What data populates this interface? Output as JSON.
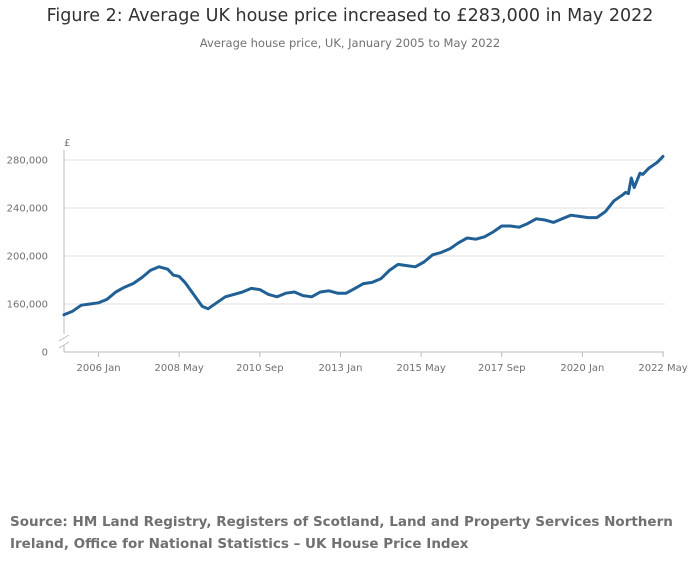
{
  "title": "Figure 2: Average UK house price increased to £283,000 in May 2022",
  "subtitle": "Average house price, UK, January 2005 to May 2022",
  "source": "Source: HM Land Registry, Registers of Scotland, Land and Property Services Northern Ireland, Office for National Statistics – UK House Price Index",
  "colors": {
    "line": "#206095",
    "grid": "#dddddd",
    "axis": "#bbbbbb",
    "text": "#707071"
  },
  "chart_data": {
    "type": "line",
    "title": "Figure 2: Average UK house price increased to £283,000 in May 2022",
    "subtitle": "Average house price, UK, January 2005 to May 2022",
    "xlabel": "",
    "ylabel": "£",
    "y_ticks": [
      0,
      160000,
      200000,
      240000,
      280000
    ],
    "y_tick_labels": [
      "0",
      "160,000",
      "200,000",
      "240,000",
      "280,000"
    ],
    "ylim": [
      0,
      290000
    ],
    "y_axis_break": true,
    "x_range": [
      "2005-01",
      "2022-05"
    ],
    "x_ticks": [
      "2006-01",
      "2008-05",
      "2010-09",
      "2013-01",
      "2015-05",
      "2017-09",
      "2020-01",
      "2022-05"
    ],
    "x_tick_labels": [
      "2006 Jan",
      "2008 May",
      "2010 Sep",
      "2013 Jan",
      "2015 May",
      "2017 Sep",
      "2020 Jan",
      "2022 May"
    ],
    "grid": true,
    "series": [
      {
        "name": "Average house price",
        "points": [
          [
            "2005-01",
            151000
          ],
          [
            "2005-04",
            154000
          ],
          [
            "2005-07",
            159000
          ],
          [
            "2005-10",
            160000
          ],
          [
            "2006-01",
            161000
          ],
          [
            "2006-04",
            164000
          ],
          [
            "2006-07",
            170000
          ],
          [
            "2006-10",
            174000
          ],
          [
            "2007-01",
            177000
          ],
          [
            "2007-04",
            182000
          ],
          [
            "2007-07",
            188000
          ],
          [
            "2007-10",
            191000
          ],
          [
            "2008-01",
            189000
          ],
          [
            "2008-03",
            184000
          ],
          [
            "2008-05",
            183000
          ],
          [
            "2008-07",
            178000
          ],
          [
            "2008-10",
            168000
          ],
          [
            "2009-01",
            158000
          ],
          [
            "2009-03",
            156000
          ],
          [
            "2009-06",
            161000
          ],
          [
            "2009-09",
            166000
          ],
          [
            "2009-12",
            168000
          ],
          [
            "2010-03",
            170000
          ],
          [
            "2010-06",
            173000
          ],
          [
            "2010-09",
            172000
          ],
          [
            "2010-12",
            168000
          ],
          [
            "2011-03",
            166000
          ],
          [
            "2011-06",
            169000
          ],
          [
            "2011-09",
            170000
          ],
          [
            "2011-12",
            167000
          ],
          [
            "2012-03",
            166000
          ],
          [
            "2012-06",
            170000
          ],
          [
            "2012-09",
            171000
          ],
          [
            "2012-12",
            169000
          ],
          [
            "2013-03",
            169000
          ],
          [
            "2013-06",
            173000
          ],
          [
            "2013-09",
            177000
          ],
          [
            "2013-12",
            178000
          ],
          [
            "2014-03",
            181000
          ],
          [
            "2014-06",
            188000
          ],
          [
            "2014-09",
            193000
          ],
          [
            "2014-12",
            192000
          ],
          [
            "2015-03",
            191000
          ],
          [
            "2015-06",
            195000
          ],
          [
            "2015-09",
            201000
          ],
          [
            "2015-12",
            203000
          ],
          [
            "2016-03",
            206000
          ],
          [
            "2016-06",
            211000
          ],
          [
            "2016-09",
            215000
          ],
          [
            "2016-12",
            214000
          ],
          [
            "2017-03",
            216000
          ],
          [
            "2017-06",
            220000
          ],
          [
            "2017-09",
            225000
          ],
          [
            "2017-12",
            225000
          ],
          [
            "2018-03",
            224000
          ],
          [
            "2018-06",
            227000
          ],
          [
            "2018-09",
            231000
          ],
          [
            "2018-12",
            230000
          ],
          [
            "2019-03",
            228000
          ],
          [
            "2019-06",
            231000
          ],
          [
            "2019-09",
            234000
          ],
          [
            "2019-12",
            233000
          ],
          [
            "2020-03",
            232000
          ],
          [
            "2020-06",
            232000
          ],
          [
            "2020-09",
            237000
          ],
          [
            "2020-12",
            246000
          ],
          [
            "2021-03",
            251000
          ],
          [
            "2021-04",
            253000
          ],
          [
            "2021-05",
            252000
          ],
          [
            "2021-06",
            265000
          ],
          [
            "2021-07",
            257000
          ],
          [
            "2021-09",
            269000
          ],
          [
            "2021-10",
            268000
          ],
          [
            "2021-12",
            273000
          ],
          [
            "2022-03",
            278000
          ],
          [
            "2022-05",
            283000
          ]
        ]
      }
    ]
  }
}
